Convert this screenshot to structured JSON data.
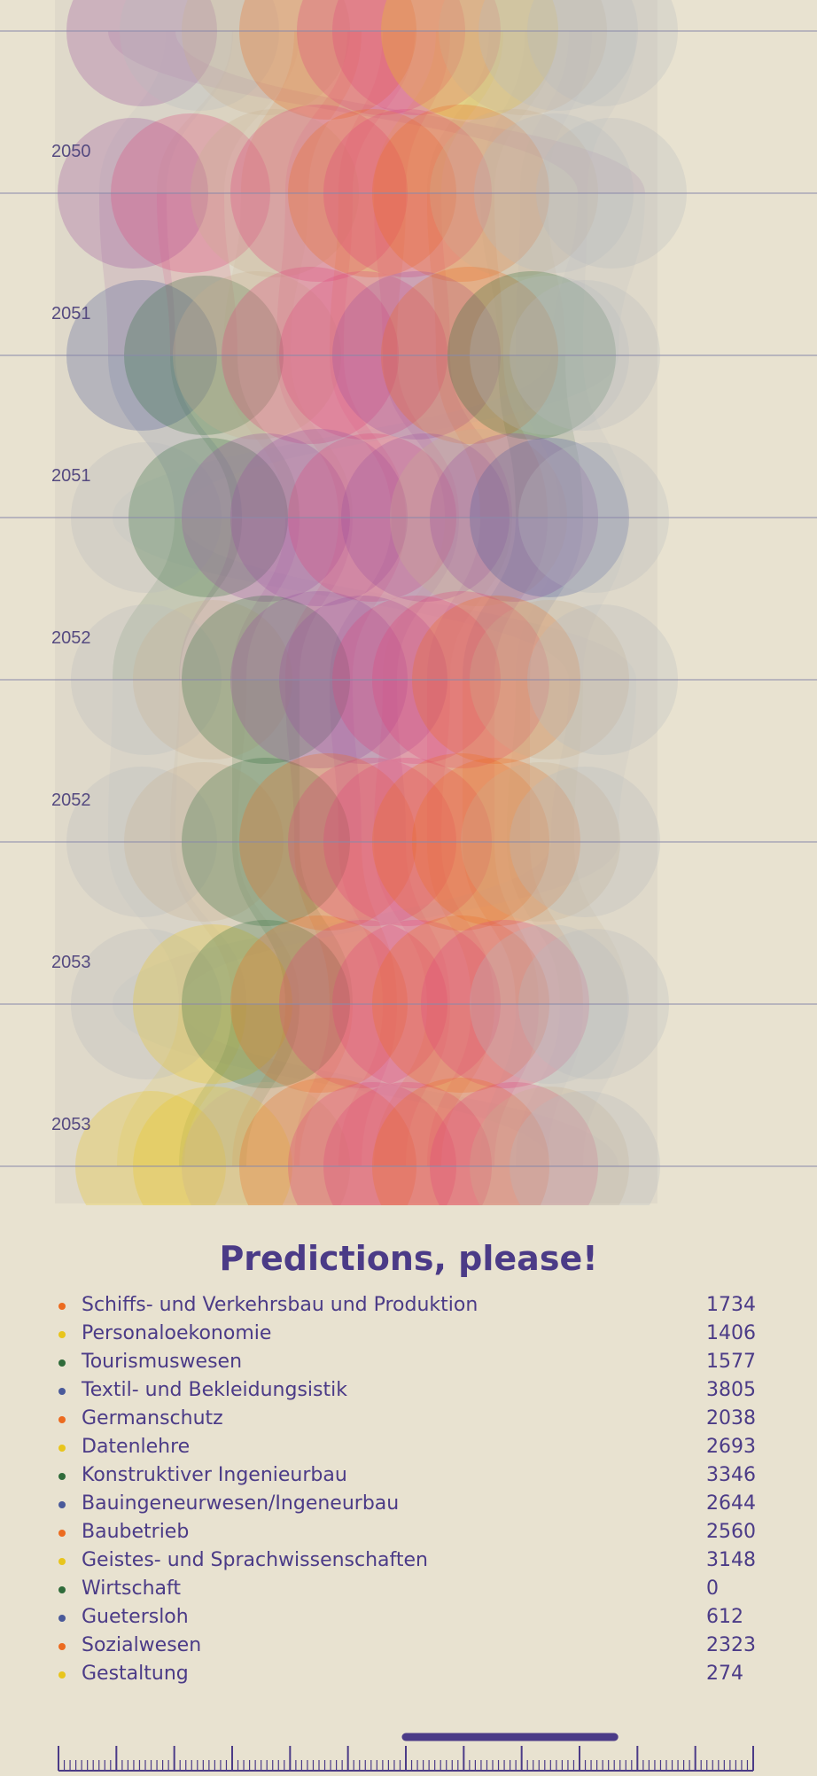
{
  "chart_data": {
    "type": "area",
    "y_labels": [
      "2050",
      "2051",
      "2051",
      "2052",
      "2052",
      "2053",
      "2053"
    ],
    "colors": {
      "orange": "#ec6b1f",
      "yellow": "#e8c51c",
      "green": "#2f6b3a",
      "blue": "#4a5a9a",
      "pink": "#e0457a",
      "purple": "#9a4f9e",
      "grey": "#b8b9c0",
      "tan": "#c9b08e",
      "text": "#4b3b87",
      "gridline": "#8a8aaa",
      "background": "#e8e2d0"
    }
  },
  "legend": {
    "title": "Predictions, please!",
    "items": [
      {
        "label": "Schiffs- und Verkehrsbau und Produktion",
        "value": "1734",
        "color": "#ec6b1f"
      },
      {
        "label": "Personaloekonomie",
        "value": "1406",
        "color": "#e8c51c"
      },
      {
        "label": "Tourismuswesen",
        "value": "1577",
        "color": "#2f6b3a"
      },
      {
        "label": "Textil- und Bekleidungsistik",
        "value": "3805",
        "color": "#4a5a9a"
      },
      {
        "label": "Germanschutz",
        "value": "2038",
        "color": "#ec6b1f"
      },
      {
        "label": "Datenlehre",
        "value": "2693",
        "color": "#e8c51c"
      },
      {
        "label": "Konstruktiver Ingenieurbau",
        "value": "3346",
        "color": "#2f6b3a"
      },
      {
        "label": "Bauingeneurwesen/Ingeneurbau",
        "value": "2644",
        "color": "#4a5a9a"
      },
      {
        "label": "Baubetrieb",
        "value": "2560",
        "color": "#ec6b1f"
      },
      {
        "label": "Geistes- und Sprachwissenschaften",
        "value": "3148",
        "color": "#e8c51c"
      },
      {
        "label": "Wirtschaft",
        "value": "0",
        "color": "#2f6b3a"
      },
      {
        "label": "Guetersloh",
        "value": "612",
        "color": "#4a5a9a"
      },
      {
        "label": "Sozialwesen",
        "value": "2323",
        "color": "#ec6b1f"
      },
      {
        "label": "Gestaltung",
        "value": "274",
        "color": "#e8c51c"
      }
    ]
  },
  "timeline": {
    "accent": "#4b3b87",
    "selected_range": [
      0.5,
      0.8
    ]
  }
}
